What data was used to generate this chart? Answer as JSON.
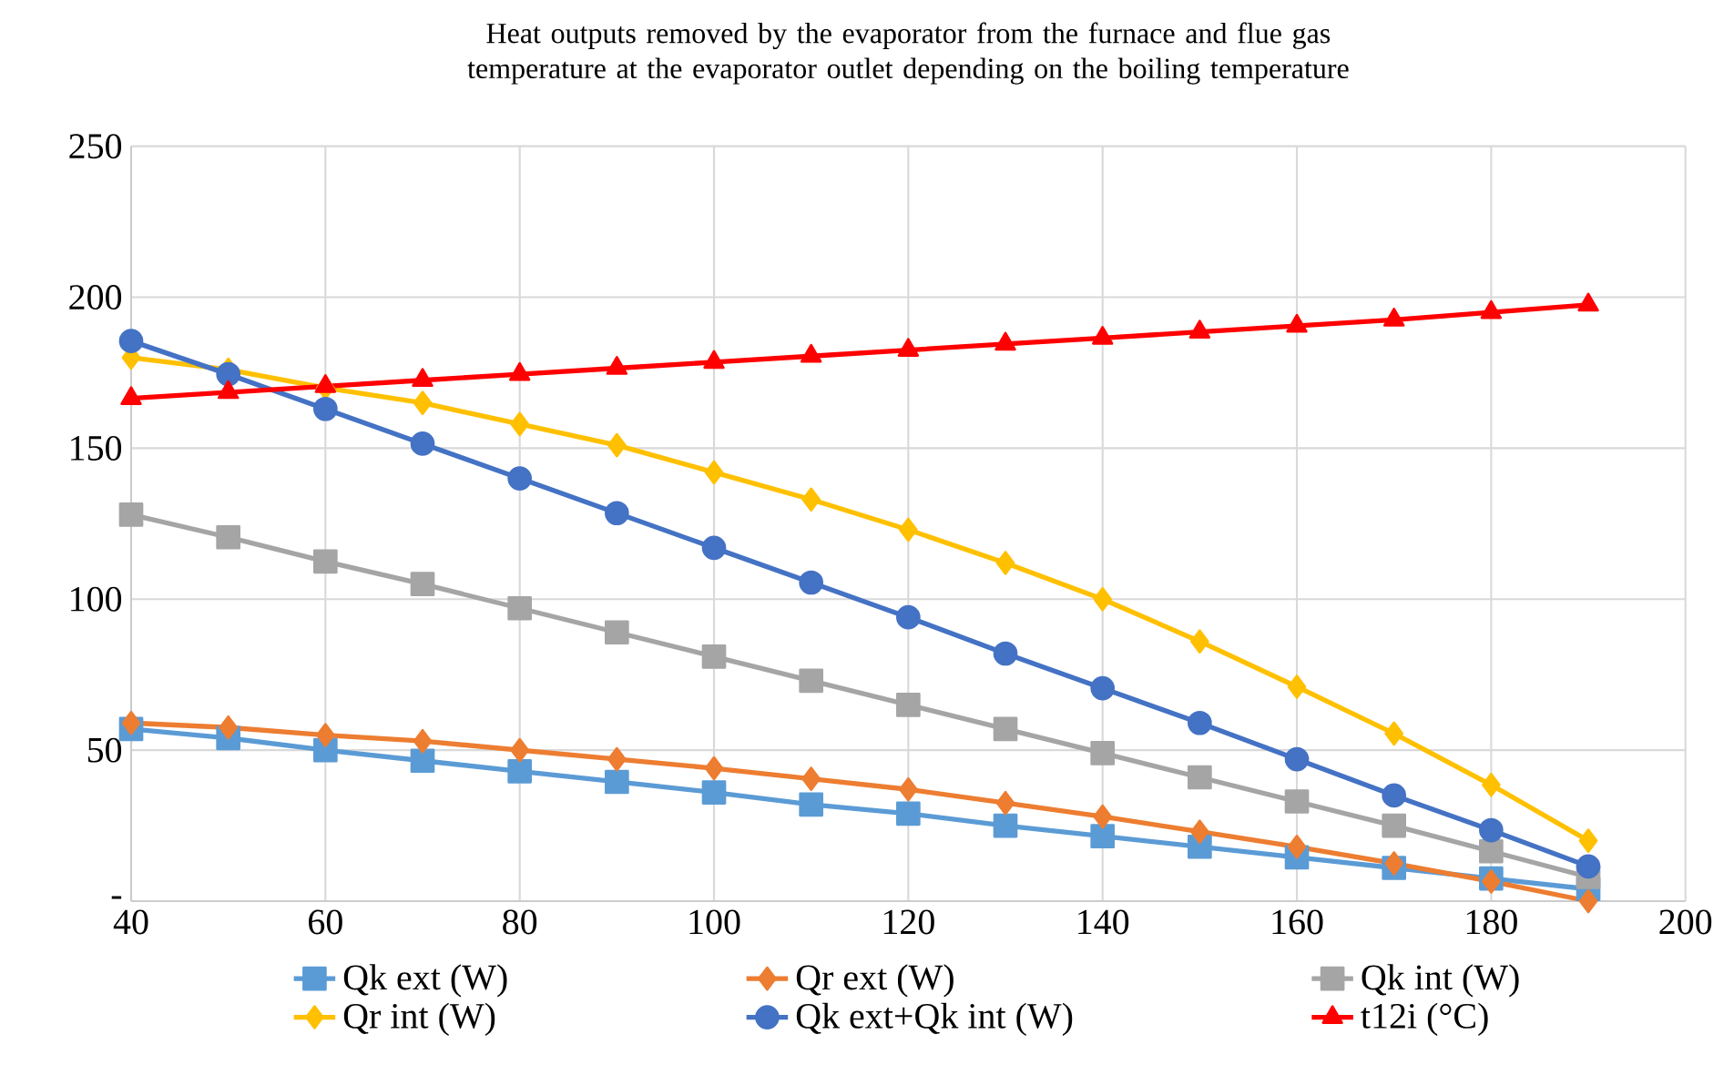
{
  "chart_data": {
    "type": "line",
    "title": "Heat outputs removed by the evaporator from the furnace and flue gas temperature at the evaporator outlet depending on the boiling temperature",
    "x": [
      40,
      50,
      60,
      70,
      80,
      90,
      100,
      110,
      120,
      130,
      140,
      150,
      160,
      170,
      180,
      190
    ],
    "series": [
      {
        "name": "Qk ext (W)",
        "color": "#5b9bd5",
        "marker": "square",
        "values": [
          57,
          54,
          50,
          46.5,
          43,
          39.5,
          36,
          32,
          29,
          25,
          21.5,
          18,
          14.5,
          11,
          7.5,
          4
        ]
      },
      {
        "name": "Qr ext (W)",
        "color": "#ed7d31",
        "marker": "diamond",
        "values": [
          59,
          57.5,
          55,
          53,
          50,
          47,
          44,
          40.5,
          37,
          32.5,
          28,
          23,
          18,
          12.5,
          6.5,
          0
        ]
      },
      {
        "name": "Qk int (W)",
        "color": "#a5a5a5",
        "marker": "square",
        "values": [
          128,
          120.5,
          112.5,
          105,
          97,
          89,
          81,
          73,
          65,
          57,
          49,
          41,
          33,
          25,
          16.5,
          8
        ]
      },
      {
        "name": "Qr int (W)",
        "color": "#ffc000",
        "marker": "diamond",
        "values": [
          180,
          176,
          170,
          165,
          158,
          151,
          142,
          133,
          123,
          112,
          100,
          86,
          71,
          55.5,
          38.5,
          20
        ]
      },
      {
        "name": "Qk ext+Qk int (W)",
        "color": "#4472c4",
        "marker": "circle",
        "values": [
          185.5,
          174.5,
          163,
          151.5,
          140,
          128.5,
          117,
          105.5,
          94,
          82,
          70.5,
          59,
          47,
          35,
          23.5,
          11.5
        ]
      },
      {
        "name": "t12i (°C)",
        "color": "#ff0000",
        "marker": "triangle",
        "values": [
          166.5,
          168.5,
          170.5,
          172.5,
          174.5,
          176.5,
          178.5,
          180.5,
          182.5,
          184.5,
          186.5,
          188.5,
          190.5,
          192.5,
          195,
          197.5
        ]
      }
    ],
    "xlim": [
      40,
      200
    ],
    "xticks": [
      40,
      60,
      80,
      100,
      120,
      140,
      160,
      180,
      200
    ],
    "ylim": [
      0,
      250
    ],
    "yticks": [
      {
        "value": 0,
        "label": "-"
      },
      50,
      100,
      150,
      200,
      250
    ],
    "grid": true,
    "legend": "bottom",
    "line_style": "solid"
  }
}
